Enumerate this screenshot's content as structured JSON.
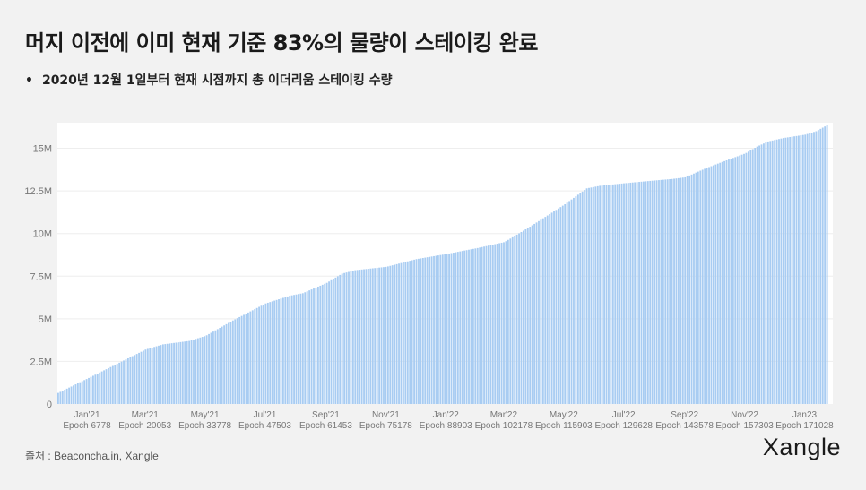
{
  "title": "머지 이전에 이미 현재 기준 83%의 물량이 스테이킹 완료",
  "subtitle": "2020년 12월 1일부터 현재 시점까지 총 이더리움 스테이킹 수량",
  "source": "출처 : Beaconcha.in, Xangle",
  "logo": "Xangle",
  "colors": {
    "bar": "#a8ccf2",
    "bar_gap": "#ffffff",
    "grid": "#eeeeee",
    "axis_text": "#777777"
  },
  "chart_data": {
    "type": "bar",
    "title": "",
    "xlabel": "",
    "ylabel": "",
    "ylim": [
      0,
      16500000
    ],
    "grid": true,
    "legend": "none",
    "y_ticks": [
      {
        "value": 0,
        "label": "0"
      },
      {
        "value": 2500000,
        "label": "2.5M"
      },
      {
        "value": 5000000,
        "label": "5M"
      },
      {
        "value": 7500000,
        "label": "7.5M"
      },
      {
        "value": 10000000,
        "label": "10M"
      },
      {
        "value": 12500000,
        "label": "12.5M"
      },
      {
        "value": 15000000,
        "label": "15M"
      }
    ],
    "x_ticks": [
      {
        "value": 6778,
        "month": "Jan'21",
        "epoch": "Epoch 6778"
      },
      {
        "value": 20053,
        "month": "Mar'21",
        "epoch": "Epoch 20053"
      },
      {
        "value": 33778,
        "month": "May'21",
        "epoch": "Epoch 33778"
      },
      {
        "value": 47503,
        "month": "Jul'21",
        "epoch": "Epoch 47503"
      },
      {
        "value": 61453,
        "month": "Sep'21",
        "epoch": "Epoch 61453"
      },
      {
        "value": 75178,
        "month": "Nov'21",
        "epoch": "Epoch 75178"
      },
      {
        "value": 88903,
        "month": "Jan'22",
        "epoch": "Epoch 88903"
      },
      {
        "value": 102178,
        "month": "Mar'22",
        "epoch": "Epoch 102178"
      },
      {
        "value": 115903,
        "month": "May'22",
        "epoch": "Epoch 115903"
      },
      {
        "value": 129628,
        "month": "Jul'22",
        "epoch": "Epoch 129628"
      },
      {
        "value": 143578,
        "month": "Sep'22",
        "epoch": "Epoch 143578"
      },
      {
        "value": 157303,
        "month": "Nov'22",
        "epoch": "Epoch 157303"
      },
      {
        "value": 171028,
        "month": "Jan23",
        "epoch": "Epoch 171028"
      }
    ],
    "xlim": [
      0,
      177500
    ],
    "series": [
      {
        "x": [
          0,
          6778,
          20053,
          24000,
          30000,
          33778,
          40000,
          47503,
          53000,
          56000,
          61453,
          65000,
          68000,
          75178,
          82000,
          88903,
          96000,
          102178,
          108000,
          115903,
          121000,
          124000,
          129628,
          136000,
          140500,
          143578,
          148000,
          152000,
          157303,
          160000,
          162500,
          166000,
          171028,
          173500,
          176000
        ],
        "values": [
          650000,
          1500000,
          3200000,
          3500000,
          3700000,
          4000000,
          4900000,
          5900000,
          6350000,
          6500000,
          7100000,
          7650000,
          7850000,
          8050000,
          8500000,
          8800000,
          9150000,
          9500000,
          10400000,
          11700000,
          12650000,
          12800000,
          12950000,
          13100000,
          13200000,
          13300000,
          13800000,
          14200000,
          14700000,
          15100000,
          15400000,
          15600000,
          15800000,
          16000000,
          16350000
        ]
      }
    ]
  }
}
